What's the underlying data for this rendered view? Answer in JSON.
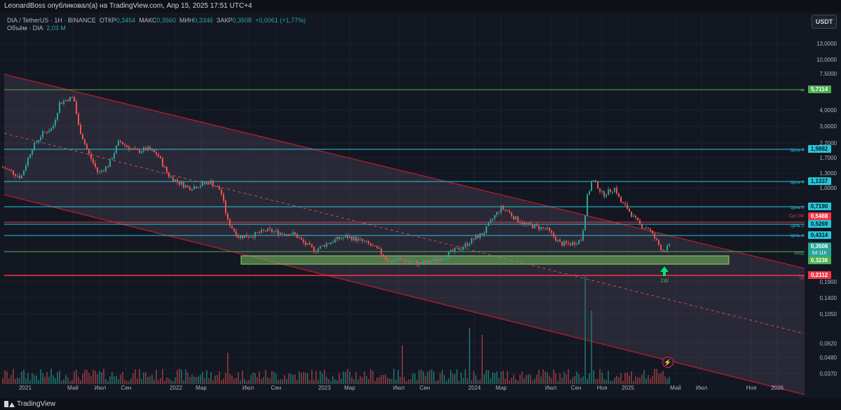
{
  "header": {
    "publish_info": "LeonardBoss опубликовал(а) на TradingView.com, Апр 15, 2025 17:51 UTC+4"
  },
  "legend": {
    "symbol": "DIA / TetherUS · 1H · BINANCE",
    "open_label": "ОТКР",
    "open": "0,3454",
    "high_label": "МАКС",
    "high": "0,3560",
    "low_label": "МИН",
    "low": "0,3346",
    "close_label": "ЗАКР",
    "close": "0,3508",
    "change": "+0,0061 (+1,77%)",
    "volume_label": "Объём · DIA",
    "volume": "2,03 M"
  },
  "currency_button": "USDT",
  "footer": {
    "brand": "TradingView"
  },
  "colors": {
    "background": "#131722",
    "up": "#26a69a",
    "down": "#ef5350",
    "channel": "#b71c2c",
    "green_line": "#4caf50",
    "cyan_line": "#26c6da",
    "red_line": "#f23645",
    "entry_zone": "#6fae5a"
  },
  "chart_data": {
    "type": "candlestick",
    "scale": "log",
    "symbol": "DIA / TetherUS",
    "timeframe": "1H",
    "exchange": "BINANCE",
    "y_ticks": [
      "13,0000",
      "10,0000",
      "7,5000",
      "4,0000",
      "3,0000",
      "2,2000",
      "1,7000",
      "1,3000",
      "1,0000",
      "0,1400",
      "0,1050",
      "0,0620",
      "0,0480",
      "0,0370",
      "0,1900"
    ],
    "x_ticks": [
      "2021",
      "Май",
      "Июл",
      "Сен",
      "2022",
      "Мар",
      "Июл",
      "Сен",
      "2023",
      "Мар",
      "Июл",
      "Сен",
      "2024",
      "Мар",
      "Июл",
      "Сен",
      "Ноя",
      "2025",
      "Май",
      "Июл",
      "Ноя",
      "2026"
    ],
    "price_labels": [
      {
        "value": "5,7114",
        "kind": "green"
      },
      {
        "value": "1,9882",
        "kind": "cyan"
      },
      {
        "value": "1,1337",
        "kind": "cyan"
      },
      {
        "value": "0,7190",
        "kind": "cyan"
      },
      {
        "value": "0,5488",
        "kind": "red"
      },
      {
        "value": "0,5269",
        "kind": "cyan"
      },
      {
        "value": "0,4314",
        "kind": "cyan"
      },
      {
        "value": "0,3508",
        "kind": "current",
        "countdown": "5d 11h"
      },
      {
        "value": "0,3236",
        "kind": "green"
      },
      {
        "value": "0,2112",
        "kind": "red"
      }
    ],
    "level_labels": [
      "Н",
      "Цель 4",
      "Цель 4",
      "Цель 3",
      "Суп 1W",
      "Цель 2",
      "Цель 1",
      "Вход",
      "ТД"
    ],
    "annotations": [
      "1W"
    ],
    "price_path": [
      [
        2,
        1.45
      ],
      [
        15,
        1.35
      ],
      [
        30,
        1.2
      ],
      [
        45,
        2.0
      ],
      [
        60,
        2.6
      ],
      [
        75,
        2.9
      ],
      [
        85,
        4.5
      ],
      [
        95,
        4.8
      ],
      [
        105,
        5.0
      ],
      [
        112,
        3.0
      ],
      [
        125,
        1.9
      ],
      [
        140,
        1.3
      ],
      [
        155,
        1.5
      ],
      [
        170,
        2.3
      ],
      [
        180,
        2.1
      ],
      [
        195,
        1.9
      ],
      [
        210,
        2.0
      ],
      [
        225,
        1.8
      ],
      [
        240,
        1.25
      ],
      [
        255,
        1.1
      ],
      [
        270,
        1.0
      ],
      [
        285,
        1.05
      ],
      [
        300,
        1.12
      ],
      [
        315,
        0.95
      ],
      [
        325,
        0.55
      ],
      [
        340,
        0.42
      ],
      [
        360,
        0.43
      ],
      [
        380,
        0.47
      ],
      [
        400,
        0.45
      ],
      [
        420,
        0.44
      ],
      [
        435,
        0.37
      ],
      [
        450,
        0.33
      ],
      [
        465,
        0.37
      ],
      [
        480,
        0.4
      ],
      [
        495,
        0.42
      ],
      [
        510,
        0.4
      ],
      [
        525,
        0.37
      ],
      [
        540,
        0.33
      ],
      [
        555,
        0.27
      ],
      [
        570,
        0.28
      ],
      [
        585,
        0.27
      ],
      [
        600,
        0.26
      ],
      [
        615,
        0.27
      ],
      [
        630,
        0.29
      ],
      [
        645,
        0.32
      ],
      [
        660,
        0.35
      ],
      [
        675,
        0.4
      ],
      [
        690,
        0.45
      ],
      [
        705,
        0.6
      ],
      [
        715,
        0.7
      ],
      [
        725,
        0.66
      ],
      [
        735,
        0.58
      ],
      [
        750,
        0.52
      ],
      [
        765,
        0.5
      ],
      [
        780,
        0.48
      ],
      [
        790,
        0.42
      ],
      [
        800,
        0.37
      ],
      [
        815,
        0.37
      ],
      [
        830,
        0.4
      ],
      [
        838,
        0.85
      ],
      [
        845,
        1.15
      ],
      [
        852,
        1.05
      ],
      [
        860,
        0.88
      ],
      [
        870,
        0.95
      ],
      [
        878,
        1.0
      ],
      [
        885,
        0.78
      ],
      [
        895,
        0.7
      ],
      [
        905,
        0.58
      ],
      [
        915,
        0.51
      ],
      [
        925,
        0.49
      ],
      [
        935,
        0.4
      ],
      [
        945,
        0.33
      ],
      [
        955,
        0.351
      ]
    ],
    "volume_spikes": [
      [
        325,
        45
      ],
      [
        575,
        55
      ],
      [
        670,
        80
      ],
      [
        688,
        70
      ],
      [
        835,
        155
      ],
      [
        845,
        105
      ]
    ]
  }
}
